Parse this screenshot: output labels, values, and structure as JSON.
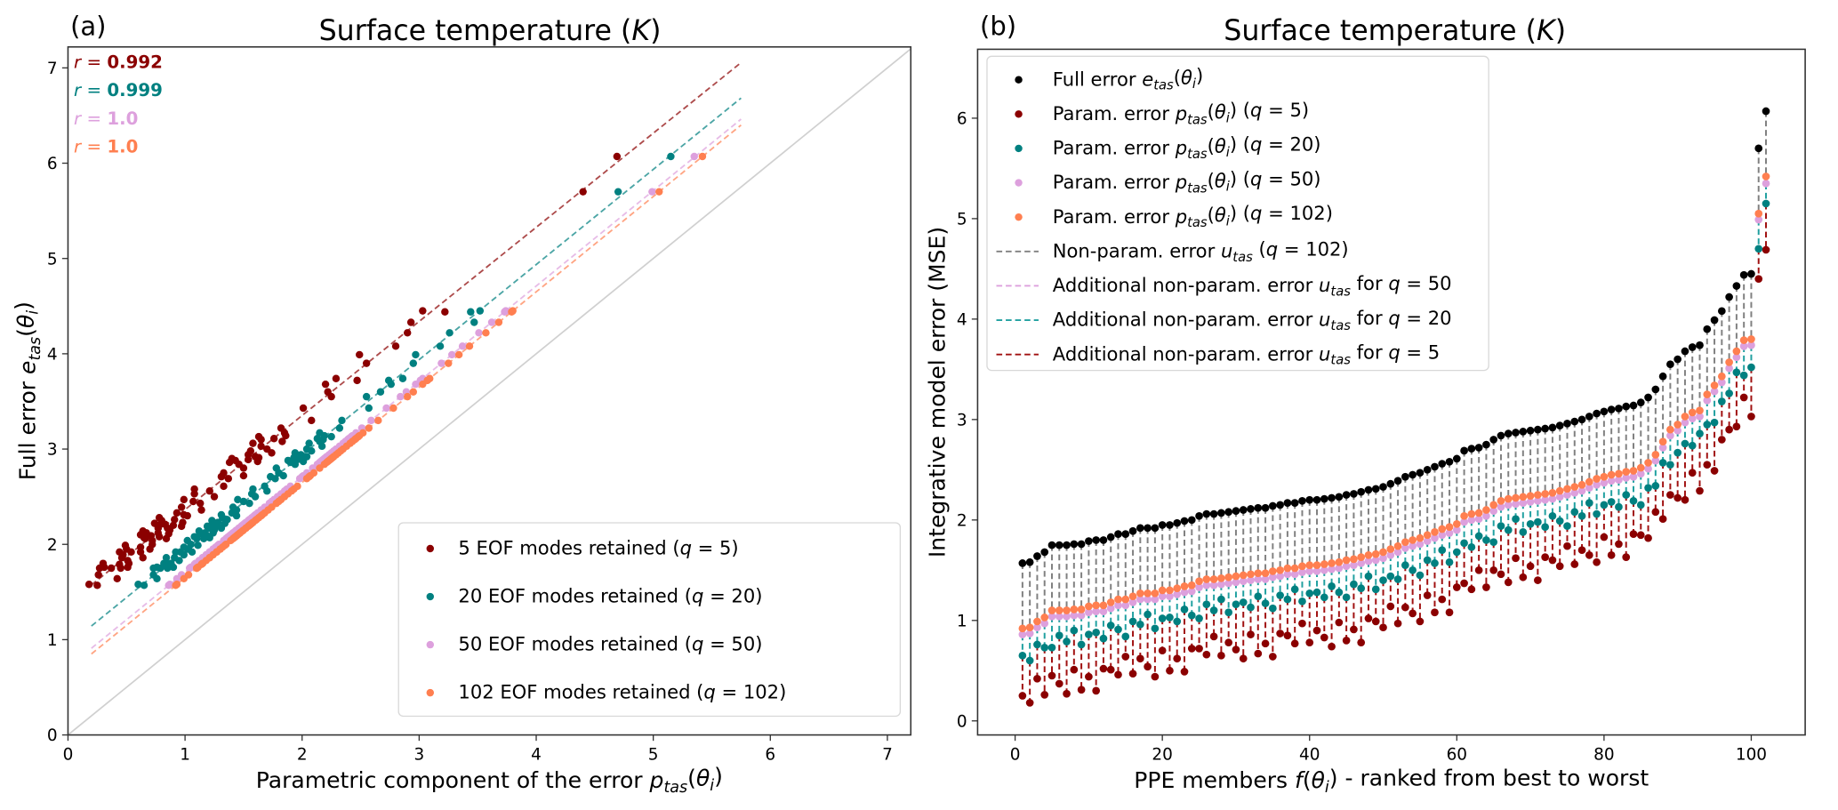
{
  "ppe_data": {
    "members": "1..102",
    "full": [
      1.57,
      1.58,
      1.64,
      1.68,
      1.75,
      1.75,
      1.75,
      1.76,
      1.76,
      1.79,
      1.8,
      1.8,
      1.83,
      1.86,
      1.86,
      1.89,
      1.92,
      1.92,
      1.92,
      1.95,
      1.95,
      1.97,
      1.99,
      2.0,
      2.04,
      2.06,
      2.06,
      2.07,
      2.08,
      2.09,
      2.1,
      2.11,
      2.12,
      2.12,
      2.14,
      2.15,
      2.17,
      2.17,
      2.19,
      2.2,
      2.2,
      2.21,
      2.22,
      2.23,
      2.25,
      2.26,
      2.28,
      2.3,
      2.31,
      2.33,
      2.36,
      2.39,
      2.43,
      2.45,
      2.47,
      2.5,
      2.53,
      2.56,
      2.58,
      2.61,
      2.69,
      2.71,
      2.72,
      2.75,
      2.8,
      2.84,
      2.86,
      2.87,
      2.88,
      2.89,
      2.9,
      2.91,
      2.92,
      2.94,
      2.96,
      2.98,
      3.0,
      3.03,
      3.06,
      3.08,
      3.1,
      3.11,
      3.13,
      3.14,
      3.17,
      3.22,
      3.3,
      3.43,
      3.55,
      3.6,
      3.68,
      3.72,
      3.74,
      3.9,
      3.99,
      4.08,
      4.22,
      4.33,
      4.44,
      4.45,
      5.7,
      6.07
    ],
    "p102": [
      0.92,
      0.93,
      0.99,
      1.03,
      1.1,
      1.1,
      1.1,
      1.11,
      1.11,
      1.14,
      1.15,
      1.15,
      1.18,
      1.21,
      1.21,
      1.24,
      1.27,
      1.27,
      1.27,
      1.3,
      1.3,
      1.32,
      1.34,
      1.35,
      1.39,
      1.41,
      1.41,
      1.42,
      1.43,
      1.44,
      1.45,
      1.46,
      1.47,
      1.47,
      1.49,
      1.5,
      1.52,
      1.52,
      1.54,
      1.55,
      1.55,
      1.56,
      1.57,
      1.58,
      1.6,
      1.61,
      1.63,
      1.65,
      1.66,
      1.68,
      1.71,
      1.74,
      1.78,
      1.8,
      1.82,
      1.85,
      1.88,
      1.91,
      1.93,
      1.96,
      2.04,
      2.06,
      2.07,
      2.1,
      2.15,
      2.19,
      2.21,
      2.22,
      2.23,
      2.24,
      2.25,
      2.26,
      2.27,
      2.29,
      2.31,
      2.33,
      2.35,
      2.38,
      2.41,
      2.43,
      2.45,
      2.46,
      2.48,
      2.49,
      2.52,
      2.57,
      2.65,
      2.78,
      2.9,
      2.95,
      3.03,
      3.07,
      3.09,
      3.25,
      3.34,
      3.43,
      3.57,
      3.68,
      3.79,
      3.8,
      5.05,
      5.42
    ],
    "p50": [
      0.86,
      0.87,
      0.93,
      0.97,
      1.04,
      1.04,
      1.04,
      1.05,
      1.05,
      1.08,
      1.09,
      1.09,
      1.12,
      1.15,
      1.15,
      1.18,
      1.21,
      1.21,
      1.21,
      1.24,
      1.24,
      1.26,
      1.28,
      1.29,
      1.33,
      1.35,
      1.35,
      1.36,
      1.37,
      1.38,
      1.39,
      1.4,
      1.41,
      1.41,
      1.43,
      1.44,
      1.46,
      1.46,
      1.48,
      1.49,
      1.49,
      1.5,
      1.51,
      1.52,
      1.54,
      1.55,
      1.57,
      1.59,
      1.6,
      1.62,
      1.65,
      1.68,
      1.72,
      1.74,
      1.76,
      1.79,
      1.82,
      1.85,
      1.87,
      1.9,
      1.98,
      2.0,
      2.01,
      2.04,
      2.09,
      2.13,
      2.15,
      2.16,
      2.17,
      2.18,
      2.19,
      2.2,
      2.21,
      2.23,
      2.25,
      2.27,
      2.29,
      2.32,
      2.35,
      2.37,
      2.39,
      2.4,
      2.42,
      2.43,
      2.46,
      2.51,
      2.59,
      2.72,
      2.84,
      2.89,
      2.97,
      3.01,
      3.03,
      3.19,
      3.28,
      3.37,
      3.51,
      3.62,
      3.73,
      3.74,
      4.99,
      5.35
    ],
    "p20": [
      0.65,
      0.6,
      0.76,
      0.73,
      0.73,
      0.85,
      0.79,
      0.9,
      0.76,
      0.86,
      0.88,
      0.82,
      0.95,
      0.91,
      0.84,
      0.99,
      0.96,
      1.06,
      0.92,
      1.02,
      1.03,
      0.99,
      1.11,
      1.05,
      1.02,
      1.16,
      1.1,
      1.21,
      1.08,
      1.16,
      1.18,
      1.13,
      1.24,
      1.17,
      1.12,
      1.25,
      1.21,
      1.31,
      1.19,
      1.27,
      1.28,
      1.23,
      1.34,
      1.28,
      1.23,
      1.36,
      1.32,
      1.44,
      1.31,
      1.4,
      1.44,
      1.41,
      1.55,
      1.5,
      1.45,
      1.6,
      1.57,
      1.7,
      1.58,
      1.68,
      1.77,
      1.73,
      1.84,
      1.8,
      1.78,
      1.94,
      1.9,
      2.01,
      1.88,
      1.96,
      1.98,
      1.93,
      2.04,
      1.99,
      1.94,
      2.08,
      2.04,
      2.17,
      2.06,
      2.15,
      2.18,
      2.13,
      2.25,
      2.19,
      2.15,
      2.32,
      2.34,
      2.57,
      2.55,
      2.67,
      2.76,
      2.74,
      2.86,
      2.95,
      2.97,
      3.18,
      3.26,
      3.47,
      3.44,
      3.52,
      4.7,
      5.15
    ],
    "p5": [
      0.25,
      0.18,
      0.42,
      0.26,
      0.45,
      0.37,
      0.27,
      0.51,
      0.31,
      0.44,
      0.3,
      0.52,
      0.51,
      0.46,
      0.64,
      0.47,
      0.62,
      0.54,
      0.44,
      0.7,
      0.5,
      0.62,
      0.49,
      0.72,
      0.72,
      0.66,
      0.84,
      0.65,
      0.78,
      0.71,
      0.62,
      0.86,
      0.67,
      0.77,
      0.64,
      0.87,
      0.85,
      0.77,
      0.97,
      0.78,
      0.9,
      0.83,
      0.74,
      0.98,
      0.8,
      0.91,
      0.78,
      1.02,
      0.99,
      0.93,
      1.14,
      0.97,
      1.13,
      1.07,
      0.99,
      1.25,
      1.08,
      1.21,
      1.08,
      1.33,
      1.37,
      1.31,
      1.5,
      1.33,
      1.5,
      1.46,
      1.38,
      1.62,
      1.43,
      1.54,
      1.4,
      1.63,
      1.6,
      1.54,
      1.74,
      1.56,
      1.7,
      1.65,
      1.58,
      1.83,
      1.65,
      1.76,
      1.63,
      1.86,
      1.85,
      1.82,
      2.08,
      2.01,
      2.25,
      2.22,
      2.2,
      2.47,
      2.29,
      2.55,
      2.49,
      2.8,
      2.9,
      2.93,
      3.22,
      3.03,
      4.4,
      4.69
    ]
  },
  "chart_data": [
    {
      "type": "scatter",
      "panel_label": "(a)",
      "title": [
        [
          "Surface temperature (",
          ""
        ],
        [
          "K",
          "i"
        ],
        [
          ")",
          ""
        ]
      ],
      "xlabel": [
        [
          "Parametric component of the error ",
          ""
        ],
        [
          "p",
          "i"
        ],
        [
          "tas",
          "s"
        ],
        [
          "(",
          ""
        ],
        [
          "θ",
          "i"
        ],
        [
          "i",
          "s"
        ],
        [
          ")",
          ""
        ]
      ],
      "ylabel": [
        [
          "Full error ",
          ""
        ],
        [
          "e",
          "i"
        ],
        [
          "tas",
          "s"
        ],
        [
          "(",
          ""
        ],
        [
          "θ",
          "i"
        ],
        [
          "i",
          "s"
        ],
        [
          ")",
          ""
        ]
      ],
      "xlim": [
        0,
        7.2
      ],
      "ylim": [
        0,
        7.22
      ],
      "xticks": [
        "0",
        "1",
        "2",
        "3",
        "4",
        "5",
        "6",
        "7"
      ],
      "yticks": [
        "0",
        "1",
        "2",
        "3",
        "4",
        "5",
        "6",
        "7"
      ],
      "identity_line": true,
      "legend_position": "lower-right",
      "y_key": "full",
      "fit_x_range": [
        0.2,
        5.75
      ],
      "series": [
        {
          "x_key": "p5",
          "color": "#8b0000",
          "label": [
            [
              "5 EOF modes retained (",
              ""
            ],
            [
              "q",
              "i"
            ],
            [
              " = 5)",
              ""
            ]
          ],
          "r_label": [
            [
              "r",
              "i"
            ],
            [
              " = ",
              ""
            ],
            [
              "0.992",
              "b"
            ]
          ]
        },
        {
          "x_key": "p20",
          "color": "#008080",
          "label": [
            [
              "20 EOF modes retained (",
              ""
            ],
            [
              "q",
              "i"
            ],
            [
              " = 20)",
              ""
            ]
          ],
          "r_label": [
            [
              "r",
              "i"
            ],
            [
              " = ",
              ""
            ],
            [
              "0.999",
              "b"
            ]
          ]
        },
        {
          "x_key": "p50",
          "color": "#dda0dd",
          "label": [
            [
              "50 EOF modes retained (",
              ""
            ],
            [
              "q",
              "i"
            ],
            [
              " = 50)",
              ""
            ]
          ],
          "r_label": [
            [
              "r",
              "i"
            ],
            [
              " = ",
              ""
            ],
            [
              "1.0",
              "b"
            ]
          ]
        },
        {
          "x_key": "p102",
          "color": "#ff7f50",
          "label": [
            [
              "102 EOF modes retained (",
              ""
            ],
            [
              "q",
              "i"
            ],
            [
              " = 102)",
              ""
            ]
          ],
          "r_label": [
            [
              "r",
              "i"
            ],
            [
              " = ",
              ""
            ],
            [
              "1.0",
              "b"
            ]
          ]
        }
      ]
    },
    {
      "type": "scatter",
      "panel_label": "(b)",
      "title": [
        [
          "Surface temperature (",
          ""
        ],
        [
          "K",
          "i"
        ],
        [
          ")",
          ""
        ]
      ],
      "xlabel": [
        [
          "PPE members ",
          ""
        ],
        [
          "f",
          "i"
        ],
        [
          "(",
          ""
        ],
        [
          "θ",
          "i"
        ],
        [
          "i",
          "s"
        ],
        [
          ") - ranked from best to worst",
          ""
        ]
      ],
      "ylabel": [
        [
          "Integrative model error (MSE)",
          ""
        ]
      ],
      "xlim": [
        -5,
        107.5
      ],
      "ylim": [
        -0.14,
        6.6
      ],
      "xticks": [
        0,
        20,
        40,
        60,
        80,
        100
      ],
      "yticks": [
        0,
        1,
        2,
        3,
        4,
        5,
        6
      ],
      "legend_position": "upper-left",
      "points": [
        {
          "key": "full",
          "color": "#000000",
          "label": [
            [
              "Full error ",
              ""
            ],
            [
              "e",
              "i"
            ],
            [
              "tas",
              "s"
            ],
            [
              "(",
              ""
            ],
            [
              "θ",
              "i"
            ],
            [
              "i",
              "s"
            ],
            [
              ")",
              ""
            ]
          ]
        },
        {
          "key": "p5",
          "color": "#8b0000",
          "label": [
            [
              "Param. error ",
              ""
            ],
            [
              "p",
              "i"
            ],
            [
              "tas",
              "s"
            ],
            [
              "(",
              ""
            ],
            [
              "θ",
              "i"
            ],
            [
              "i",
              "s"
            ],
            [
              ") (",
              ""
            ],
            [
              "q",
              "i"
            ],
            [
              " = 5)",
              ""
            ]
          ]
        },
        {
          "key": "p20",
          "color": "#008080",
          "label": [
            [
              "Param. error ",
              ""
            ],
            [
              "p",
              "i"
            ],
            [
              "tas",
              "s"
            ],
            [
              "(",
              ""
            ],
            [
              "θ",
              "i"
            ],
            [
              "i",
              "s"
            ],
            [
              ") (",
              ""
            ],
            [
              "q",
              "i"
            ],
            [
              " = 20)",
              ""
            ]
          ]
        },
        {
          "key": "p50",
          "color": "#dda0dd",
          "label": [
            [
              "Param. error ",
              ""
            ],
            [
              "p",
              "i"
            ],
            [
              "tas",
              "s"
            ],
            [
              "(",
              ""
            ],
            [
              "θ",
              "i"
            ],
            [
              "i",
              "s"
            ],
            [
              ") (",
              ""
            ],
            [
              "q",
              "i"
            ],
            [
              " = 50)",
              ""
            ]
          ]
        },
        {
          "key": "p102",
          "color": "#ff7f50",
          "label": [
            [
              "Param. error ",
              ""
            ],
            [
              "p",
              "i"
            ],
            [
              "tas",
              "s"
            ],
            [
              "(",
              ""
            ],
            [
              "θ",
              "i"
            ],
            [
              "i",
              "s"
            ],
            [
              ") (",
              ""
            ],
            [
              "q",
              "i"
            ],
            [
              " = 102)",
              ""
            ]
          ]
        }
      ],
      "segments": [
        {
          "from": "full",
          "to": "p102",
          "color": "#808080",
          "label": [
            [
              "Non-param. error ",
              ""
            ],
            [
              "u",
              "i"
            ],
            [
              "tas",
              "s"
            ],
            [
              " (",
              ""
            ],
            [
              "q",
              "i"
            ],
            [
              " = 102)",
              ""
            ]
          ]
        },
        {
          "from": "p102",
          "to": "p50",
          "color": "#dda0dd",
          "label": [
            [
              "Additional non-param. error ",
              ""
            ],
            [
              "u",
              "i"
            ],
            [
              "tas",
              "s"
            ],
            [
              " for ",
              ""
            ],
            [
              "q",
              "i"
            ],
            [
              " = 50",
              ""
            ]
          ]
        },
        {
          "from": "p50",
          "to": "p20",
          "color": "#20a0a0",
          "label": [
            [
              "Additional non-param. error ",
              ""
            ],
            [
              "u",
              "i"
            ],
            [
              "tas",
              "s"
            ],
            [
              " for ",
              ""
            ],
            [
              "q",
              "i"
            ],
            [
              " = 20",
              ""
            ]
          ]
        },
        {
          "from": "p20",
          "to": "p5",
          "color": "#a01010",
          "label": [
            [
              "Additional non-param. error ",
              ""
            ],
            [
              "u",
              "i"
            ],
            [
              "tas",
              "s"
            ],
            [
              " for ",
              ""
            ],
            [
              "q",
              "i"
            ],
            [
              " = 5",
              ""
            ]
          ]
        }
      ]
    }
  ]
}
